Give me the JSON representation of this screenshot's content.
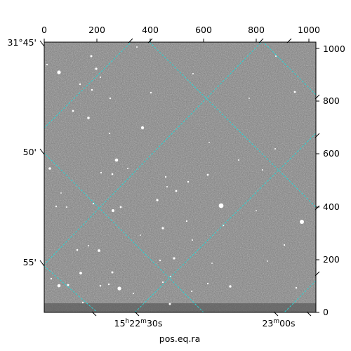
{
  "plot": {
    "xlabel_bottom": "pos.eq.ra",
    "ra_ticks": [
      {
        "h": "15",
        "m": "22",
        "s": "30s"
      },
      {
        "h": "",
        "m": "23",
        "s": "00s"
      }
    ],
    "dec_ticks": [
      "31°45'",
      "50'",
      "55'"
    ],
    "pixel_x_ticks": [
      "0",
      "200",
      "400",
      "600",
      "800",
      "1000"
    ],
    "pixel_y_ticks": [
      "0",
      "200",
      "400",
      "600",
      "800",
      "1000"
    ]
  },
  "colors": {
    "background": "#7a7a7a",
    "grid": "#2ad4d4",
    "frame": "#000000"
  }
}
